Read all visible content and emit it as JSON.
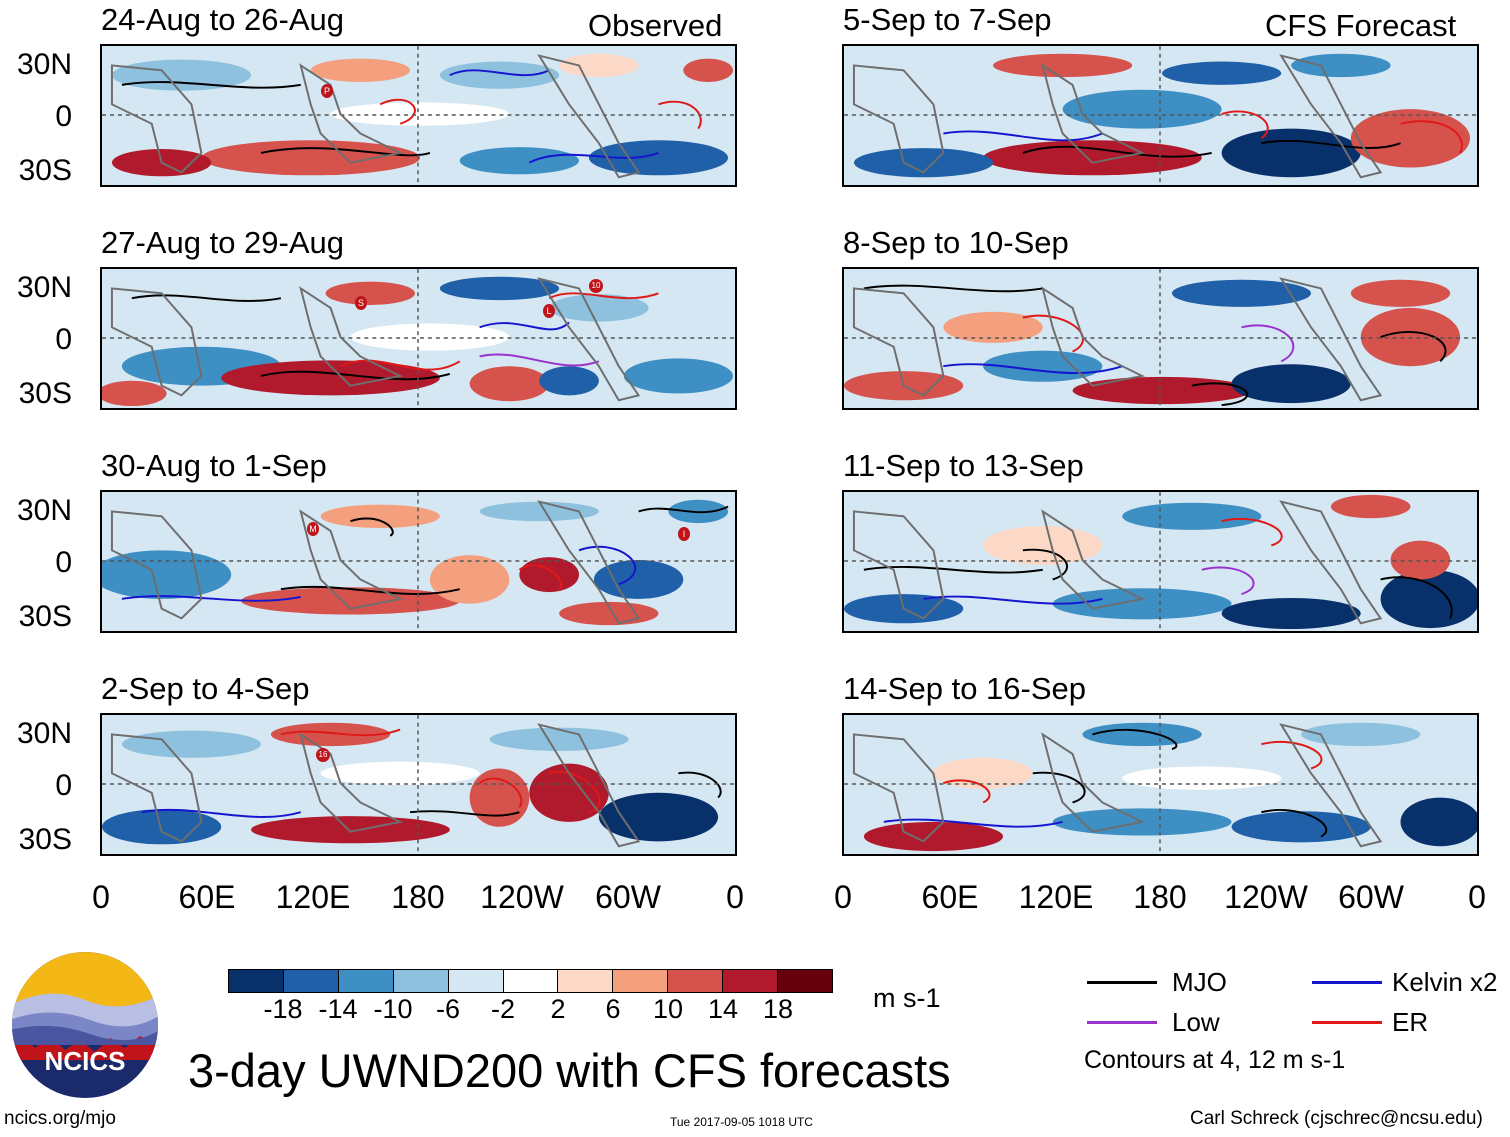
{
  "header": {
    "observed_label": "Observed",
    "forecast_label": "CFS Forecast"
  },
  "panels_observed": [
    {
      "title": "24-Aug to 26-Aug"
    },
    {
      "title": "27-Aug to 29-Aug"
    },
    {
      "title": "30-Aug to 1-Sep"
    },
    {
      "title": "2-Sep to 4-Sep"
    }
  ],
  "panels_forecast": [
    {
      "title": "5-Sep to 7-Sep"
    },
    {
      "title": "8-Sep to 10-Sep"
    },
    {
      "title": "11-Sep to 13-Sep"
    },
    {
      "title": "14-Sep to 16-Sep"
    }
  ],
  "lat_labels": [
    "30N",
    "0",
    "30S"
  ],
  "lon_labels": [
    "0",
    "60E",
    "120E",
    "180",
    "120W",
    "60W",
    "0"
  ],
  "storm_markers": {
    "p0": [
      "P"
    ],
    "p1": [
      "S",
      "L",
      "10"
    ],
    "p2": [
      "M",
      "I"
    ],
    "p3": [
      "16"
    ]
  },
  "colorbar": {
    "colors": [
      "#08306b",
      "#1f60a8",
      "#3d8fc4",
      "#8ec1de",
      "#d5e7f2",
      "#ffffff",
      "#fcd9c6",
      "#f4a07f",
      "#d6524c",
      "#b11a2c",
      "#67000d"
    ],
    "labels": [
      "-18",
      "-14",
      "-10",
      "-6",
      "-2",
      "2",
      "6",
      "10",
      "14",
      "18"
    ],
    "units": "m s-1"
  },
  "legend": {
    "items": [
      {
        "label": "MJO",
        "color": "#000000"
      },
      {
        "label": "Kelvin x2",
        "color": "#1515d0"
      },
      {
        "label": "Low",
        "color": "#9a32cd"
      },
      {
        "label": "ER",
        "color": "#e01818"
      }
    ],
    "note": "Contours at 4, 12 m s-1"
  },
  "title": "3-day UWND200 with CFS forecasts",
  "logo_text": "NCICS",
  "footer": {
    "left": "ncics.org/mjo",
    "center": "Tue 2017-09-05 1018 UTC",
    "right": "Carl Schreck (cjschrec@ncsu.edu)"
  }
}
